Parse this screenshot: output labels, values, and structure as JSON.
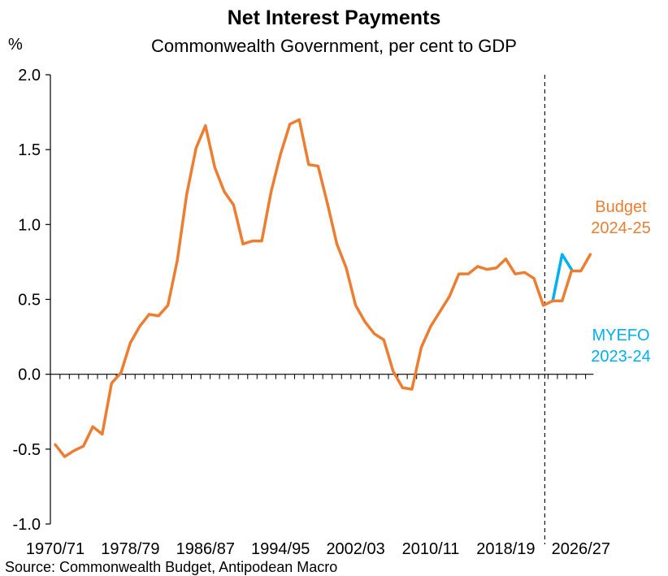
{
  "chart_data": {
    "type": "line",
    "title": "Net Interest Payments",
    "subtitle": "Commonwealth Government, per cent to GDP",
    "ylabel": "%",
    "ylim": [
      -1.0,
      2.0
    ],
    "yticks": [
      "2.0",
      "1.5",
      "1.0",
      "0.5",
      "0.0",
      "-0.5",
      "-1.0"
    ],
    "xtick_labels": [
      "1970/71",
      "1978/79",
      "1986/87",
      "1994/95",
      "2002/03",
      "2010/11",
      "2018/19",
      "2026/27"
    ],
    "x_start": "1970/71",
    "forecast_divider_after": "2022/23",
    "source": "Source: Commonwealth Budget, Antipodean Macro",
    "series": [
      {
        "name": "Budget\n2024-25",
        "color": "#ED7D31",
        "values": [
          -0.47,
          -0.55,
          -0.51,
          -0.48,
          -0.35,
          -0.4,
          -0.06,
          0.01,
          0.21,
          0.32,
          0.4,
          0.39,
          0.46,
          0.76,
          1.2,
          1.51,
          1.66,
          1.38,
          1.22,
          1.13,
          0.87,
          0.89,
          0.89,
          1.22,
          1.47,
          1.67,
          1.7,
          1.4,
          1.39,
          1.14,
          0.87,
          0.71,
          0.46,
          0.35,
          0.27,
          0.23,
          0.02,
          -0.09,
          -0.1,
          0.18,
          0.32,
          0.42,
          0.52,
          0.67,
          0.67,
          0.72,
          0.7,
          0.71,
          0.77,
          0.67,
          0.68,
          0.64,
          0.46,
          0.49,
          0.49,
          0.69,
          0.69,
          0.8
        ]
      },
      {
        "name": "MYEFO\n2023-24",
        "color": "#00B0F0",
        "start_year": "2023/24",
        "values": [
          0.49,
          0.8,
          0.7
        ]
      }
    ],
    "annotations": [
      {
        "text": "Budget",
        "color": "#ED7D31"
      },
      {
        "text": "2024-25",
        "color": "#ED7D31"
      },
      {
        "text": "MYEFO",
        "color": "#00B0F0"
      },
      {
        "text": "2023-24",
        "color": "#00B0F0"
      }
    ]
  }
}
